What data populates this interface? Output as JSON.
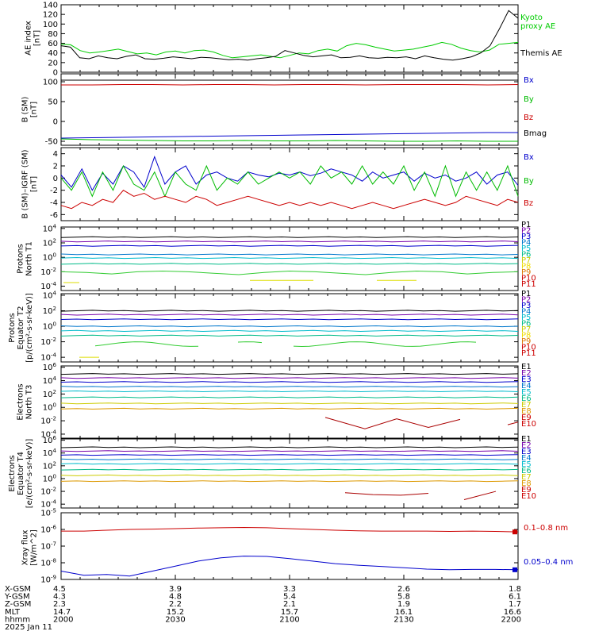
{
  "chart_data": [
    {
      "type": "line",
      "ylabel": "AE index [nT]",
      "ylim": [
        0,
        140
      ],
      "yticks": [
        "0",
        "20",
        "40",
        "60",
        "80",
        "100",
        "120",
        "140"
      ],
      "series": [
        {
          "name": "Kyoto proxy AE",
          "color": "#00cc00",
          "values": [
            58,
            57,
            45,
            40,
            42,
            45,
            48,
            43,
            38,
            40,
            36,
            42,
            44,
            40,
            45,
            46,
            42,
            35,
            30,
            32,
            34,
            36,
            33,
            30,
            35,
            40,
            38,
            45,
            48,
            44,
            55,
            60,
            57,
            52,
            48,
            44,
            46,
            48,
            52,
            56,
            62,
            58,
            50,
            45,
            42,
            46,
            58,
            60,
            62
          ]
        },
        {
          "name": "Themis AE",
          "color": "#000000",
          "values": [
            55,
            52,
            30,
            28,
            34,
            30,
            28,
            33,
            36,
            28,
            27,
            29,
            32,
            30,
            28,
            31,
            30,
            28,
            26,
            27,
            25,
            28,
            30,
            33,
            45,
            40,
            35,
            32,
            34,
            36,
            30,
            31,
            34,
            30,
            29,
            31,
            30,
            32,
            28,
            34,
            30,
            27,
            25,
            28,
            32,
            40,
            55,
            90,
            128,
            112
          ]
        }
      ]
    },
    {
      "type": "line",
      "ylabel": "B (SM) [nT]",
      "ylim": [
        -60,
        120
      ],
      "yticks": [
        "-50",
        "0",
        "50",
        "100"
      ],
      "series": [
        {
          "name": "Bx",
          "color": "#0000cc",
          "values": [
            -42,
            -41,
            -40,
            -39,
            -38,
            -37,
            -36,
            -35,
            -34,
            -33,
            -32,
            -31,
            -30,
            -29,
            -28,
            -28
          ]
        },
        {
          "name": "By",
          "color": "#00bb00",
          "values": [
            -44,
            -46,
            -47,
            -48,
            -49,
            -49,
            -48,
            -49,
            -49,
            -48,
            -49,
            -50,
            -50,
            -49,
            -50,
            -50
          ]
        },
        {
          "name": "Bz",
          "color": "#cc0000",
          "values": [
            92,
            92,
            93,
            93,
            92,
            93,
            93,
            92,
            93,
            93,
            92,
            93,
            93,
            93,
            92,
            93
          ]
        },
        {
          "name": "Bmag",
          "color": "#000000",
          "values": [
            104,
            104,
            104,
            104,
            104,
            104,
            104,
            104,
            104,
            104,
            104,
            104,
            104,
            104,
            104,
            104
          ]
        }
      ]
    },
    {
      "type": "line",
      "ylabel": "B (SM)-IGRF (SM) [nT]",
      "ylim": [
        -7,
        5
      ],
      "yticks": [
        "-6",
        "-4",
        "-2",
        "0",
        "2",
        "4"
      ],
      "series": [
        {
          "name": "Bx",
          "color": "#0000cc",
          "values": [
            0.5,
            -1.5,
            1.5,
            -2,
            0.8,
            -1,
            2,
            1,
            -1.5,
            3.5,
            -1,
            1,
            2,
            -1,
            0.5,
            1,
            0,
            -0.5,
            1,
            0.5,
            0.2,
            0.8,
            0.5,
            1,
            0.4,
            0.8,
            1.5,
            1,
            0.5,
            -0.5,
            1,
            0,
            0.5,
            1,
            -0.5,
            0.8,
            0,
            0.5,
            -0.5,
            0,
            1,
            -1,
            0.5,
            1,
            -1.2
          ]
        },
        {
          "name": "By",
          "color": "#00bb00",
          "values": [
            0,
            -2,
            1,
            -3,
            1,
            -2,
            2,
            -1,
            -2,
            1,
            -3,
            1,
            -1,
            -2,
            2,
            -2,
            0,
            -1,
            1,
            -1,
            0,
            1,
            0,
            1,
            -1,
            2,
            0,
            1,
            -1,
            2,
            -1,
            1,
            -1,
            2,
            -2,
            1,
            -3,
            2,
            -3,
            1,
            -2,
            1,
            -2,
            2,
            -3
          ]
        },
        {
          "name": "Bz",
          "color": "#cc0000",
          "values": [
            -4.5,
            -5,
            -4,
            -4.5,
            -3.5,
            -4,
            -2,
            -3,
            -2.5,
            -3.5,
            -3,
            -3.5,
            -4,
            -3,
            -3.5,
            -4.5,
            -4,
            -3.5,
            -3,
            -3.5,
            -4,
            -4.5,
            -4,
            -4.5,
            -4,
            -4.5,
            -4,
            -4.5,
            -5,
            -4.5,
            -4,
            -4.5,
            -5,
            -4.5,
            -4,
            -3.5,
            -4,
            -4.5,
            -4,
            -3,
            -3.5,
            -4,
            -4.5,
            -3.5,
            -4
          ]
        }
      ]
    },
    {
      "type": "line",
      "ylabel": "Protons North T1",
      "log": true,
      "yticks": [
        "10-4",
        "10-2",
        "100",
        "102",
        "104"
      ],
      "legend": [
        "P1",
        "P2",
        "P3",
        "P4",
        "P5",
        "P6",
        "P7",
        "P8",
        "P9",
        "P10",
        "P11"
      ]
    },
    {
      "type": "line",
      "ylabel": "Protons Equator T2 [p/(cm2-s-sr-keV)]",
      "log": true,
      "yticks": [
        "10-4",
        "10-2",
        "100",
        "102",
        "104"
      ],
      "legend": [
        "P1",
        "P2",
        "P3",
        "P4",
        "P5",
        "P6",
        "P7",
        "P8",
        "P9",
        "P10",
        "P11"
      ]
    },
    {
      "type": "line",
      "ylabel": "Electrons North T3",
      "log": true,
      "yticks": [
        "10-4",
        "10-2",
        "100",
        "102",
        "104",
        "106"
      ],
      "legend": [
        "E1",
        "E2",
        "E3",
        "E4",
        "E5",
        "E6",
        "E7",
        "E8",
        "E9",
        "E10"
      ]
    },
    {
      "type": "line",
      "ylabel": "Electrons Equator T4 [e/(cm2-s-sr-keV)]",
      "log": true,
      "yticks": [
        "10-4",
        "10-2",
        "100",
        "102",
        "104",
        "106"
      ],
      "legend": [
        "E1",
        "E2",
        "E3",
        "E4",
        "E5",
        "E6",
        "E7",
        "E8",
        "E9",
        "E10"
      ]
    },
    {
      "type": "line",
      "ylabel": "Xray flux [W/m^2]",
      "log": true,
      "yticks": [
        "10-9",
        "10-8",
        "10-7",
        "10-6",
        "10-5"
      ],
      "series": [
        {
          "name": "0.1-0.8 nm",
          "color": "#cc0000",
          "values": [
            -6.1,
            -6.1,
            -6.05,
            -6.0,
            -5.98,
            -5.95,
            -5.92,
            -5.9,
            -5.88,
            -5.9,
            -5.95,
            -6.0,
            -6.05,
            -6.08,
            -6.1,
            -6.1,
            -6.1,
            -6.12,
            -6.1,
            -6.12,
            -6.15
          ]
        },
        {
          "name": "0.05-0.4 nm",
          "color": "#0000cc",
          "values": [
            -8.5,
            -8.75,
            -8.7,
            -8.8,
            -8.5,
            -8.2,
            -7.9,
            -7.7,
            -7.6,
            -7.62,
            -7.75,
            -7.9,
            -8.05,
            -8.15,
            -8.22,
            -8.3,
            -8.38,
            -8.42,
            -8.4,
            -8.4,
            -8.42
          ]
        }
      ]
    }
  ],
  "axes": {
    "xticks": [
      {
        "pos": 0.0,
        "x": "4.5",
        "y": "4.3",
        "z": "2.3",
        "mlt": "14.7",
        "hhmm": "2000"
      },
      {
        "pos": 0.25,
        "x": "3.9",
        "y": "4.8",
        "z": "2.2",
        "mlt": "15.2",
        "hhmm": "2030"
      },
      {
        "pos": 0.5,
        "x": "3.3",
        "y": "5.4",
        "z": "2.1",
        "mlt": "15.7",
        "hhmm": "2100"
      },
      {
        "pos": 0.75,
        "x": "2.6",
        "y": "5.8",
        "z": "1.9",
        "mlt": "16.1",
        "hhmm": "2130"
      },
      {
        "pos": 1.0,
        "x": "1.8",
        "y": "6.1",
        "z": "1.7",
        "mlt": "16.6",
        "hhmm": "2200"
      }
    ],
    "row_labels": [
      "X-GSM",
      "Y-GSM",
      "Z-GSM",
      "MLT",
      "hhmm"
    ],
    "date": "2025 Jan 11"
  },
  "legend_texts": {
    "ae_kyoto_1": "Kyoto",
    "ae_kyoto_2": "proxy AE",
    "ae_themis": "Themis AE",
    "xray_long": "0.1–0.8 nm",
    "xray_short": "0.05–0.4 nm"
  },
  "colors": {
    "p": [
      "#000000",
      "#7700aa",
      "#0000cc",
      "#0077cc",
      "#00bbcc",
      "#00bb88",
      "#cccc00",
      "#eedd00",
      "#dd7700",
      "#cc0000",
      "#cc0000"
    ],
    "e": [
      "#000000",
      "#7700aa",
      "#0000cc",
      "#0077cc",
      "#00bbcc",
      "#00bb88",
      "#cccc00",
      "#dd9900",
      "#cc0000",
      "#cc0000"
    ]
  }
}
